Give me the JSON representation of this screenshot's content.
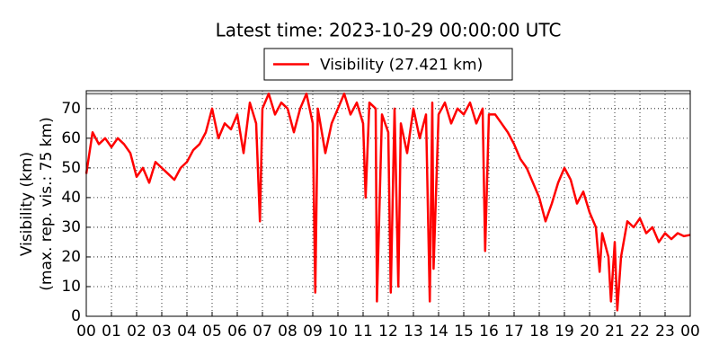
{
  "chart_data": {
    "type": "line",
    "title": "Latest time: 2023-10-29 00:00:00 UTC",
    "y_label": [
      "Visibility (km)",
      "(max. rep. vis.: 75 km)"
    ],
    "x": [
      0,
      0.25,
      0.5,
      0.75,
      1,
      1.25,
      1.5,
      1.75,
      2,
      2.25,
      2.5,
      2.75,
      3,
      3.25,
      3.5,
      3.75,
      4,
      4.25,
      4.5,
      4.75,
      5,
      5.25,
      5.5,
      5.75,
      6,
      6.25,
      6.5,
      6.75,
      6.9,
      7,
      7.25,
      7.5,
      7.75,
      8,
      8.25,
      8.5,
      8.75,
      9,
      9.1,
      9.2,
      9.5,
      9.75,
      10,
      10.25,
      10.5,
      10.75,
      11,
      11.1,
      11.25,
      11.5,
      11.55,
      11.75,
      12,
      12.1,
      12.25,
      12.4,
      12.5,
      12.75,
      13,
      13.25,
      13.5,
      13.65,
      13.75,
      13.8,
      14,
      14.25,
      14.5,
      14.75,
      15,
      15.25,
      15.5,
      15.75,
      15.85,
      16,
      16.25,
      16.5,
      16.75,
      17,
      17.25,
      17.5,
      17.75,
      18,
      18.25,
      18.5,
      18.75,
      19,
      19.25,
      19.5,
      19.75,
      20,
      20.25,
      20.4,
      20.5,
      20.75,
      20.85,
      21,
      21.1,
      21.25,
      21.5,
      21.75,
      22,
      22.25,
      22.5,
      22.75,
      23,
      23.25,
      23.5,
      23.75,
      24
    ],
    "series": [
      {
        "name": "Visibility (27.421 km)",
        "color": "#ff0000",
        "values": [
          48,
          62,
          58,
          60,
          57,
          60,
          58,
          55,
          47,
          50,
          45,
          52,
          50,
          48,
          46,
          50,
          52,
          56,
          58,
          62,
          70,
          60,
          65,
          63,
          68,
          55,
          72,
          65,
          32,
          70,
          75,
          68,
          72,
          70,
          62,
          70,
          75,
          65,
          8,
          70,
          55,
          65,
          70,
          75,
          68,
          72,
          65,
          40,
          72,
          70,
          5,
          68,
          62,
          8,
          70,
          10,
          65,
          55,
          70,
          60,
          68,
          5,
          72,
          16,
          68,
          72,
          65,
          70,
          68,
          72,
          65,
          70,
          22,
          68,
          68,
          65,
          62,
          58,
          53,
          50,
          45,
          40,
          32,
          38,
          45,
          50,
          46,
          38,
          42,
          35,
          30,
          15,
          28,
          20,
          5,
          25,
          2,
          20,
          32,
          30,
          33,
          28,
          30,
          25,
          28,
          26,
          28,
          27,
          27.421
        ]
      }
    ],
    "xlim": [
      0,
      24
    ],
    "xticks": [
      {
        "value": 0,
        "label": "00"
      },
      {
        "value": 1,
        "label": "01"
      },
      {
        "value": 2,
        "label": "02"
      },
      {
        "value": 3,
        "label": "03"
      },
      {
        "value": 4,
        "label": "04"
      },
      {
        "value": 5,
        "label": "05"
      },
      {
        "value": 6,
        "label": "06"
      },
      {
        "value": 7,
        "label": "07"
      },
      {
        "value": 8,
        "label": "08"
      },
      {
        "value": 9,
        "label": "09"
      },
      {
        "value": 10,
        "label": "10"
      },
      {
        "value": 11,
        "label": "11"
      },
      {
        "value": 12,
        "label": "12"
      },
      {
        "value": 13,
        "label": "13"
      },
      {
        "value": 14,
        "label": "14"
      },
      {
        "value": 15,
        "label": "15"
      },
      {
        "value": 16,
        "label": "16"
      },
      {
        "value": 17,
        "label": "17"
      },
      {
        "value": 18,
        "label": "18"
      },
      {
        "value": 19,
        "label": "19"
      },
      {
        "value": 20,
        "label": "20"
      },
      {
        "value": 21,
        "label": "21"
      },
      {
        "value": 22,
        "label": "22"
      },
      {
        "value": 23,
        "label": "23"
      },
      {
        "value": 24,
        "label": "00"
      }
    ],
    "ylim": [
      0,
      76
    ],
    "yticks": [
      0,
      10,
      20,
      30,
      40,
      50,
      60,
      70
    ],
    "max_vis_line": 75,
    "grid": true,
    "legend": "upper center"
  }
}
